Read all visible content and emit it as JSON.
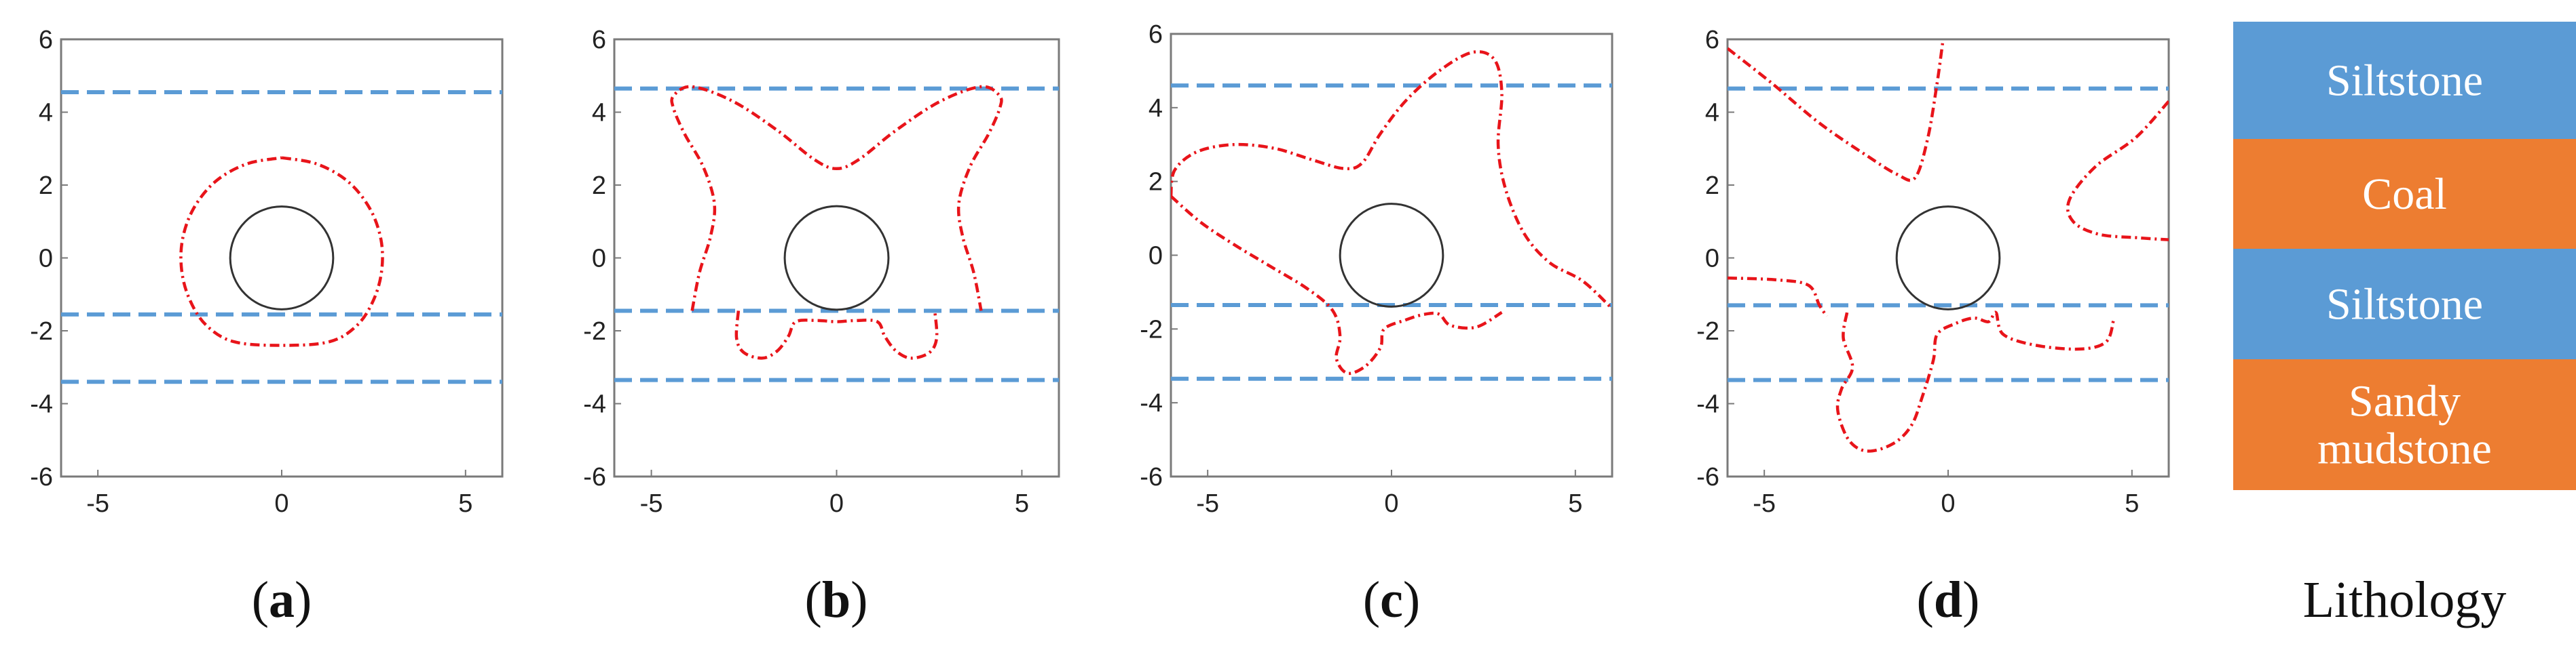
{
  "chart_data": [
    {
      "type": "line",
      "panel_label": "a",
      "xlim": [
        -6,
        6
      ],
      "ylim": [
        -6,
        6
      ],
      "x_ticks": [
        -5,
        0,
        5
      ],
      "y_ticks": [
        6,
        4,
        2,
        0,
        -2,
        -4,
        -6
      ],
      "circle": {
        "cx": 0,
        "cy": 0,
        "r": 1.4
      },
      "boundaries": [
        4.55,
        -1.55,
        -3.4
      ],
      "failure_zone": [
        [
          [
            0,
            2.75
          ],
          [
            0.95,
            2.58
          ],
          [
            1.8,
            2.1
          ],
          [
            2.4,
            1.35
          ],
          [
            2.7,
            0.5
          ],
          [
            2.72,
            -0.35
          ],
          [
            2.5,
            -1.15
          ],
          [
            2.05,
            -1.85
          ],
          [
            1.3,
            -2.3
          ],
          [
            0,
            -2.4
          ],
          [
            -1.3,
            -2.3
          ],
          [
            -2.05,
            -1.85
          ],
          [
            -2.5,
            -1.15
          ],
          [
            -2.72,
            -0.35
          ],
          [
            -2.7,
            0.5
          ],
          [
            -2.4,
            1.35
          ],
          [
            -1.8,
            2.1
          ],
          [
            -0.95,
            2.58
          ],
          [
            0,
            2.75
          ]
        ]
      ]
    },
    {
      "type": "line",
      "panel_label": "b",
      "xlim": [
        -6,
        6
      ],
      "ylim": [
        -6,
        6
      ],
      "x_ticks": [
        -5,
        0,
        5
      ],
      "y_ticks": [
        6,
        4,
        2,
        0,
        -2,
        -4,
        -6
      ],
      "circle": {
        "cx": 0,
        "cy": 0,
        "r": 1.4
      },
      "boundaries": [
        4.65,
        -1.45,
        -3.35
      ],
      "failure_zone": [
        [
          [
            -3.9,
            -1.45
          ],
          [
            -3.7,
            -0.4
          ],
          [
            -3.4,
            0.6
          ],
          [
            -3.3,
            1.5
          ],
          [
            -3.6,
            2.5
          ],
          [
            -4.1,
            3.4
          ],
          [
            -4.4,
            4.1
          ],
          [
            -4.4,
            4.45
          ],
          [
            -3.9,
            4.7
          ],
          [
            -2.8,
            4.3
          ],
          [
            -1.6,
            3.5
          ],
          [
            -0.6,
            2.7
          ],
          [
            0,
            2.45
          ],
          [
            0.6,
            2.7
          ],
          [
            1.6,
            3.5
          ],
          [
            2.8,
            4.3
          ],
          [
            3.9,
            4.7
          ],
          [
            4.4,
            4.45
          ],
          [
            4.4,
            4.1
          ],
          [
            4.1,
            3.4
          ],
          [
            3.6,
            2.5
          ],
          [
            3.3,
            1.5
          ],
          [
            3.4,
            0.6
          ],
          [
            3.7,
            -0.4
          ],
          [
            3.9,
            -1.45
          ]
        ],
        [
          [
            -2.65,
            -1.45
          ],
          [
            -2.7,
            -2.2
          ],
          [
            -2.5,
            -2.6
          ],
          [
            -2.0,
            -2.75
          ],
          [
            -1.6,
            -2.55
          ],
          [
            -1.3,
            -2.15
          ],
          [
            -1.1,
            -1.75
          ],
          [
            -0.5,
            -1.72
          ],
          [
            0,
            -1.75
          ],
          [
            0.5,
            -1.72
          ],
          [
            1.1,
            -1.75
          ],
          [
            1.3,
            -2.15
          ],
          [
            1.6,
            -2.55
          ],
          [
            2.0,
            -2.75
          ],
          [
            2.5,
            -2.6
          ],
          [
            2.7,
            -2.2
          ],
          [
            2.65,
            -1.45
          ]
        ]
      ]
    },
    {
      "type": "line",
      "panel_label": "c",
      "xlim": [
        -6,
        6
      ],
      "ylim": [
        -6,
        6
      ],
      "x_ticks": [
        -5,
        0,
        5
      ],
      "y_ticks": [
        6,
        4,
        2,
        0,
        -2,
        -4,
        -6
      ],
      "circle": {
        "cx": 0,
        "cy": 0,
        "r": 1.4
      },
      "boundaries": [
        4.6,
        -1.35,
        -3.35
      ],
      "failure_zone": [
        [
          [
            -6.0,
            1.6
          ],
          [
            -5.9,
            2.3
          ],
          [
            -5.3,
            2.8
          ],
          [
            -4.3,
            3.0
          ],
          [
            -3.2,
            2.9
          ],
          [
            -2.2,
            2.6
          ],
          [
            -1.3,
            2.35
          ],
          [
            -0.8,
            2.5
          ],
          [
            -0.3,
            3.3
          ],
          [
            0.4,
            4.2
          ],
          [
            1.3,
            5.0
          ],
          [
            2.2,
            5.5
          ],
          [
            2.8,
            5.3
          ],
          [
            3.0,
            4.4
          ],
          [
            2.9,
            3.0
          ],
          [
            3.1,
            1.8
          ],
          [
            3.6,
            0.6
          ],
          [
            4.3,
            -0.2
          ],
          [
            5.2,
            -0.7
          ],
          [
            6.0,
            -1.45
          ]
        ],
        [
          [
            -6.0,
            1.6
          ],
          [
            -5.2,
            0.9
          ],
          [
            -4.3,
            0.3
          ],
          [
            -3.3,
            -0.3
          ],
          [
            -2.3,
            -0.9
          ],
          [
            -1.6,
            -1.5
          ],
          [
            -1.4,
            -2.2
          ],
          [
            -1.5,
            -2.8
          ],
          [
            -1.2,
            -3.2
          ],
          [
            -0.7,
            -3.0
          ],
          [
            -0.3,
            -2.5
          ],
          [
            -0.2,
            -2.0
          ],
          [
            0.4,
            -1.75
          ],
          [
            0.9,
            -1.6
          ],
          [
            1.3,
            -1.6
          ],
          [
            1.6,
            -1.9
          ],
          [
            2.3,
            -1.95
          ],
          [
            3.0,
            -1.55
          ]
        ]
      ]
    },
    {
      "type": "line",
      "panel_label": "d",
      "xlim": [
        -6,
        6
      ],
      "ylim": [
        -6,
        6
      ],
      "x_ticks": [
        -5,
        0,
        5
      ],
      "y_ticks": [
        6,
        4,
        2,
        0,
        -2,
        -4,
        -6
      ],
      "circle": {
        "cx": 0,
        "cy": 0,
        "r": 1.4
      },
      "boundaries": [
        4.65,
        -1.3,
        -3.35
      ],
      "failure_zone": [
        [
          [
            -6.0,
            5.75
          ],
          [
            -4.8,
            4.8
          ],
          [
            -3.5,
            3.7
          ],
          [
            -2.2,
            2.8
          ],
          [
            -1.4,
            2.3
          ],
          [
            -0.9,
            2.2
          ],
          [
            -0.55,
            3.3
          ],
          [
            -0.3,
            4.8
          ],
          [
            -0.15,
            5.9
          ]
        ],
        [
          [
            6.0,
            4.3
          ],
          [
            5.1,
            3.3
          ],
          [
            4.0,
            2.5
          ],
          [
            3.3,
            1.6
          ],
          [
            3.4,
            1.0
          ],
          [
            4.1,
            0.65
          ],
          [
            5.2,
            0.55
          ],
          [
            6.0,
            0.5
          ]
        ],
        [
          [
            -6.0,
            -0.55
          ],
          [
            -4.7,
            -0.6
          ],
          [
            -3.8,
            -0.75
          ],
          [
            -3.5,
            -1.3
          ],
          [
            -3.3,
            -1.6
          ]
        ],
        [
          [
            -2.75,
            -1.5
          ],
          [
            -2.85,
            -2.2
          ],
          [
            -2.6,
            -3.0
          ],
          [
            -2.9,
            -3.6
          ],
          [
            -3.0,
            -4.2
          ],
          [
            -2.7,
            -5.0
          ],
          [
            -2.2,
            -5.3
          ],
          [
            -1.5,
            -5.1
          ],
          [
            -1.0,
            -4.6
          ],
          [
            -0.7,
            -3.8
          ],
          [
            -0.4,
            -2.8
          ],
          [
            -0.3,
            -2.1
          ],
          [
            0.2,
            -1.8
          ],
          [
            0.7,
            -1.65
          ],
          [
            1.1,
            -1.75
          ],
          [
            1.3,
            -1.5
          ],
          [
            1.5,
            -2.1
          ],
          [
            2.4,
            -2.4
          ],
          [
            3.6,
            -2.5
          ],
          [
            4.3,
            -2.3
          ],
          [
            4.5,
            -1.7
          ]
        ]
      ]
    }
  ],
  "captions": [
    {
      "open": "(",
      "letter": "a",
      "close": ")"
    },
    {
      "open": "(",
      "letter": "b",
      "close": ")"
    },
    {
      "open": "(",
      "letter": "c",
      "close": ")"
    },
    {
      "open": "(",
      "letter": "d",
      "close": ")"
    }
  ],
  "lithology": {
    "title": "Lithology",
    "layers": [
      {
        "lines": [
          "Siltstone"
        ],
        "color": "#5b9bd5"
      },
      {
        "lines": [
          "Coal"
        ],
        "color": "#ed7d31"
      },
      {
        "lines": [
          "Siltstone"
        ],
        "color": "#5b9bd5"
      },
      {
        "lines": [
          "Sandy",
          "mudstone"
        ],
        "color": "#ed7d31"
      }
    ]
  },
  "colors": {
    "boundary": "#5b9bd5",
    "failure": "#e8141a",
    "circle": "#333333",
    "axes": "#7a7a7a"
  }
}
